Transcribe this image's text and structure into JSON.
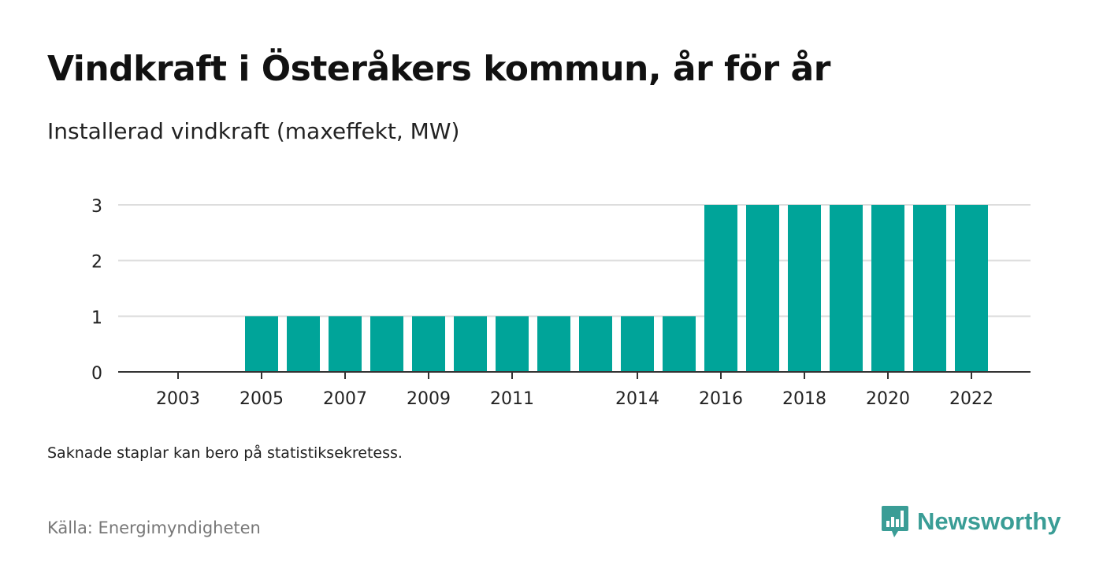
{
  "title": "Vindkraft i Österåkers kommun, år för år",
  "subtitle": "Installerad vindkraft (maxeffekt, MW)",
  "note": "Saknade staplar kan bero på statistiksekretess.",
  "source": "Källa: Energimyndigheten",
  "brand": {
    "name": "Newsworthy",
    "icon": "newsworthy-logo-icon",
    "color": "#3a9d96"
  },
  "colors": {
    "bar": "#00a499",
    "grid": "#dddddd",
    "axis": "#333333"
  },
  "chart_data": {
    "type": "bar",
    "categories": [
      "2003",
      "2004",
      "2005",
      "2006",
      "2007",
      "2008",
      "2009",
      "2010",
      "2011",
      "2012",
      "2013",
      "2014",
      "2015",
      "2016",
      "2017",
      "2018",
      "2019",
      "2020",
      "2021",
      "2022"
    ],
    "values": [
      null,
      null,
      1,
      1,
      1,
      1,
      1,
      1,
      1,
      1,
      1,
      1,
      1,
      3,
      3,
      3,
      3,
      3,
      3,
      3
    ],
    "x_tick_labels": [
      "2003",
      "2005",
      "2007",
      "2009",
      "2011",
      "2014",
      "2016",
      "2018",
      "2020",
      "2022"
    ],
    "y_ticks": [
      0,
      1,
      2,
      3
    ],
    "ylim": [
      0,
      3
    ],
    "grid": true,
    "legend": "none"
  }
}
